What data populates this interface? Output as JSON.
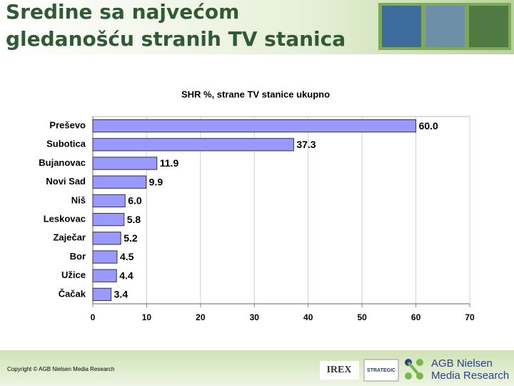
{
  "slide_title_lines": [
    "Sredine sa najvećom",
    "gledanošću stranih TV stanica"
  ],
  "chart_data": {
    "type": "hbar",
    "title": "SHR %, strane TV stanice ukupno",
    "categories": [
      "Preševo",
      "Subotica",
      "Bujanovac",
      "Novi Sad",
      "Niš",
      "Leskovac",
      "Zaječar",
      "Bor",
      "Užice",
      "Čačak"
    ],
    "values": [
      60.0,
      37.3,
      11.9,
      9.9,
      6.0,
      5.8,
      5.2,
      4.5,
      4.4,
      3.4
    ],
    "value_labels": [
      "60.0",
      "37.3",
      "11.9",
      "9.9",
      "6.0",
      "5.8",
      "5.2",
      "4.5",
      "4.4",
      "3.4"
    ],
    "color": "#9999ff",
    "xlim": [
      0,
      70
    ],
    "xticks": [
      0,
      10,
      20,
      30,
      40,
      50,
      60,
      70
    ],
    "grid": true
  },
  "footer": {
    "copyright": "Copyright © AGB Nielsen Media Research",
    "logo1": "IREX",
    "logo2": "STRATEGIC",
    "logo3_lines": [
      "AGB Nielsen",
      "Media Research"
    ]
  }
}
